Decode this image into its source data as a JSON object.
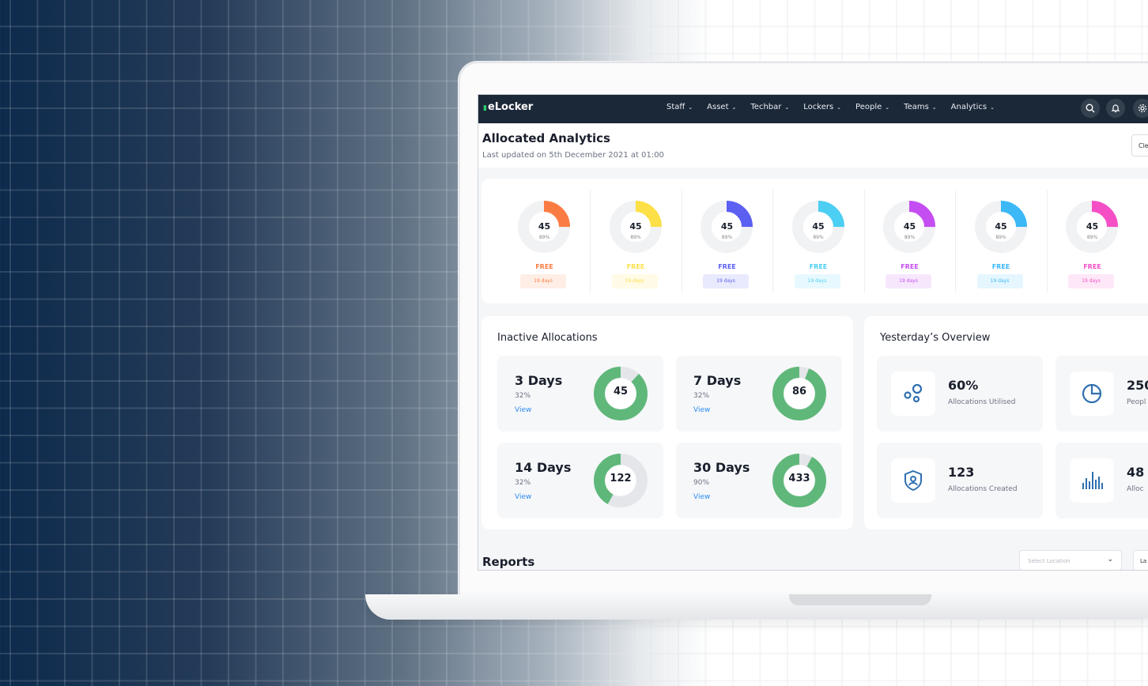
{
  "nav": {
    "logo": "eLocker",
    "menu": [
      "Staff",
      "Asset",
      "Techbar",
      "Lockers",
      "People",
      "Teams",
      "Analytics"
    ]
  },
  "header": {
    "title": "Allocated Analytics",
    "subtitle": "Last updated on 5th December 2021 at 01:00",
    "clear_label": "Cle"
  },
  "summary_cards": [
    {
      "value": "45",
      "pct": "89%",
      "status": "FREE",
      "days": "19 days",
      "color": "#fb7c43",
      "fill": 0.25
    },
    {
      "value": "45",
      "pct": "89%",
      "status": "FREE",
      "days": "19 days",
      "color": "#fde047",
      "fill": 0.25
    },
    {
      "value": "45",
      "pct": "89%",
      "status": "FREE",
      "days": "19 days",
      "color": "#5b5ff2",
      "fill": 0.25
    },
    {
      "value": "45",
      "pct": "89%",
      "status": "FREE",
      "days": "19 days",
      "color": "#4dcff4",
      "fill": 0.25
    },
    {
      "value": "45",
      "pct": "89%",
      "status": "FREE",
      "days": "19 days",
      "color": "#c44ef2",
      "fill": 0.25
    },
    {
      "value": "45",
      "pct": "89%",
      "status": "FREE",
      "days": "19 days",
      "color": "#3bb8f5",
      "fill": 0.25
    },
    {
      "value": "45",
      "pct": "89%",
      "status": "FREE",
      "days": "19 days",
      "color": "#f54fc6",
      "fill": 0.25
    }
  ],
  "inactive": {
    "title": "Inactive Allocations",
    "tiles": [
      {
        "title": "3 Days",
        "pct": "32%",
        "view": "View",
        "value": "45",
        "fill": 0.88
      },
      {
        "title": "7 Days",
        "pct": "32%",
        "view": "View",
        "value": "86",
        "fill": 0.94
      },
      {
        "title": "14 Days",
        "pct": "32%",
        "view": "View",
        "value": "122",
        "fill": 0.42
      },
      {
        "title": "30 Days",
        "pct": "90%",
        "view": "View",
        "value": "433",
        "fill": 0.92
      }
    ],
    "ring_color": "#5fb87a"
  },
  "overview": {
    "title": "Yesterday’s Overview",
    "tiles": [
      {
        "value": "60%",
        "label": "Allocations Utilised",
        "icon": "circles-icon"
      },
      {
        "value": "250",
        "label": "Peopl",
        "icon": "pie-chart-icon"
      },
      {
        "value": "123",
        "label": "Allocations Created",
        "icon": "shield-user-icon"
      },
      {
        "value": "48",
        "label": "Alloc",
        "icon": "bar-chart-icon"
      }
    ]
  },
  "reports": {
    "title": "Reports",
    "select_placeholder": "Select Location",
    "button_label": "La"
  }
}
